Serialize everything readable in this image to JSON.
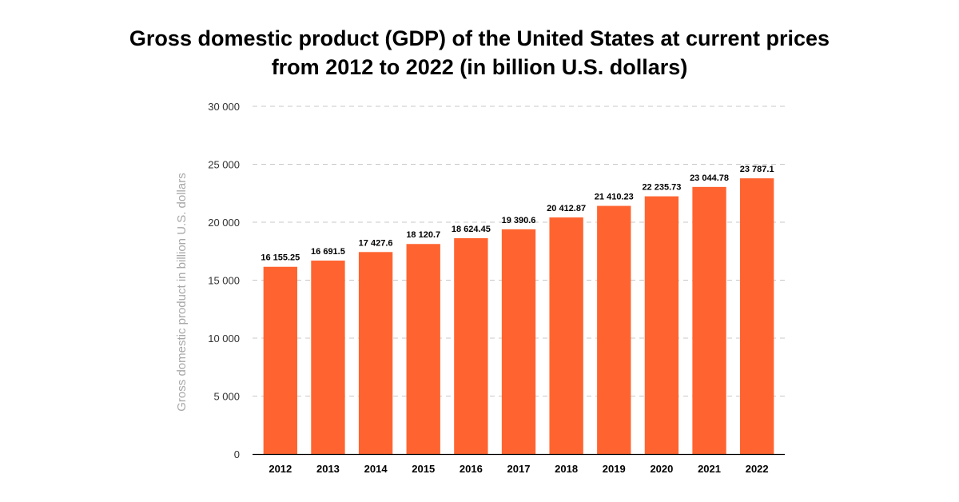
{
  "chart_data": {
    "type": "bar",
    "title": "Gross domestic product (GDP) of the United States at current prices from 2012 to 2022 (in billion U.S. dollars)",
    "xlabel": "",
    "ylabel": "Gross domestic product in billion U.S. dollars",
    "categories": [
      "2012",
      "2013",
      "2014",
      "2015",
      "2016",
      "2017",
      "2018",
      "2019",
      "2020",
      "2021",
      "2022"
    ],
    "values": [
      16155.25,
      16691.5,
      17427.6,
      18120.7,
      18624.45,
      19390.6,
      20412.87,
      21410.23,
      22235.73,
      23044.78,
      23787.1
    ],
    "value_labels": [
      "16 155.25",
      "16 691.5",
      "17 427.6",
      "18 120.7",
      "18 624.45",
      "19 390.6",
      "20 412.87",
      "21 410.23",
      "22 235.73",
      "23 044.78",
      "23 787.1"
    ],
    "yticks": [
      0,
      5000,
      10000,
      15000,
      20000,
      25000,
      30000
    ],
    "ytick_labels": [
      "0",
      "5 000",
      "10 000",
      "15 000",
      "20 000",
      "25 000",
      "30 000"
    ],
    "ylim": [
      0,
      30000
    ],
    "grid": true,
    "legend": "none",
    "bar_color": "#ff6430"
  }
}
